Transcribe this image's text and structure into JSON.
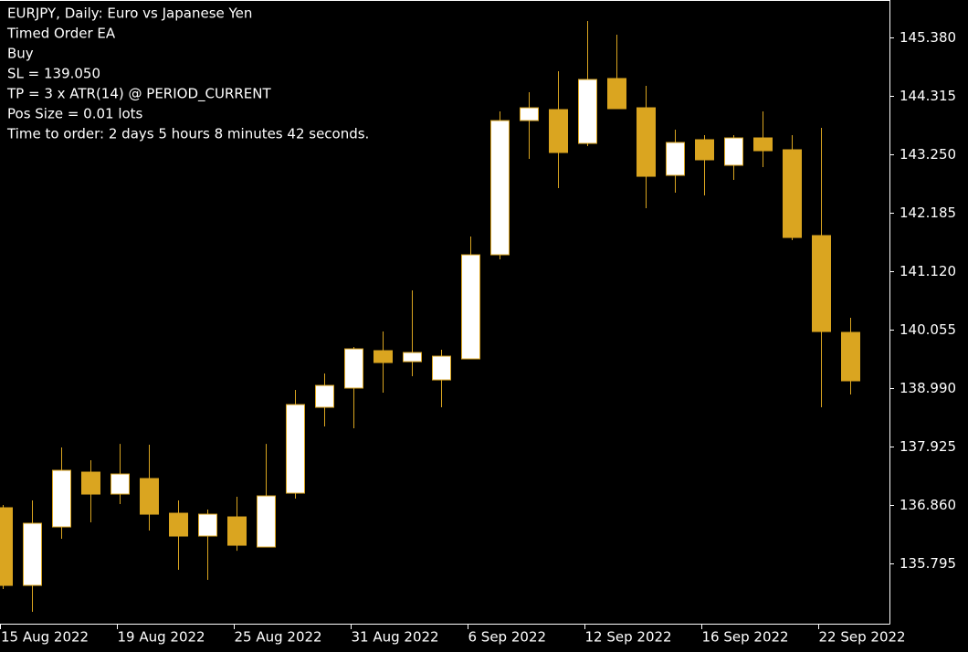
{
  "chart_data": {
    "type": "candlestick",
    "title": "EURJPY, Daily:  Euro vs Japanese Yen",
    "annotations": [
      "Timed Order EA",
      "Buy",
      "SL = 139.050",
      "TP = 3 x ATR(14) @ PERIOD_CURRENT",
      "Pos Size = 0.01 lots",
      "Time to order: 2 days 5 hours 8 minutes 42 seconds."
    ],
    "categories": [
      "15 Aug 2022",
      null,
      null,
      null,
      "19 Aug 2022",
      null,
      null,
      null,
      "25 Aug 2022",
      null,
      null,
      null,
      "31 Aug 2022",
      null,
      null,
      null,
      "6 Sep 2022",
      null,
      null,
      null,
      "12 Sep 2022",
      null,
      null,
      null,
      "16 Sep 2022",
      null,
      null,
      null,
      "22 Sep 2022",
      null
    ],
    "open": [
      136.81,
      135.395,
      136.46,
      137.459,
      137.059,
      137.342,
      136.71,
      136.294,
      136.643,
      136.094,
      137.076,
      138.64,
      138.99,
      139.672,
      139.472,
      139.139,
      139.522,
      141.419,
      143.865,
      144.065,
      143.449,
      144.631,
      144.098,
      142.867,
      143.516,
      143.05,
      143.549,
      143.333,
      141.769,
      140.005
    ],
    "high": [
      136.86,
      136.943,
      137.908,
      137.675,
      137.974,
      137.958,
      136.943,
      136.776,
      137.009,
      137.974,
      138.956,
      139.256,
      139.738,
      140.021,
      140.77,
      139.688,
      141.752,
      144.032,
      144.381,
      144.764,
      145.679,
      145.43,
      144.498,
      143.699,
      143.599,
      143.599,
      144.032,
      143.599,
      143.732,
      140.271
    ],
    "low": [
      135.329,
      134.913,
      136.244,
      136.543,
      136.876,
      136.394,
      135.678,
      135.495,
      136.027,
      136.094,
      136.976,
      138.291,
      138.257,
      138.906,
      139.206,
      138.64,
      139.522,
      141.336,
      143.166,
      142.634,
      143.399,
      144.082,
      142.268,
      142.551,
      142.501,
      142.784,
      143.017,
      141.685,
      138.64,
      138.873
    ],
    "close": [
      135.395,
      136.527,
      137.492,
      137.059,
      137.425,
      136.693,
      136.294,
      136.693,
      136.127,
      137.026,
      138.69,
      139.039,
      139.705,
      139.456,
      139.639,
      139.572,
      141.419,
      143.865,
      144.098,
      143.283,
      144.614,
      144.082,
      142.85,
      143.466,
      143.15,
      143.549,
      143.316,
      141.735,
      140.021,
      139.123
    ],
    "up_color": "#ffffff",
    "down_color": "#daa520",
    "wick_color": "#daa520",
    "ylim": [
      134.697,
      146.062
    ],
    "yticks": [
      {
        "value": 145.38,
        "label": "145.380"
      },
      {
        "value": 144.315,
        "label": "144.315"
      },
      {
        "value": 143.25,
        "label": "143.250"
      },
      {
        "value": 142.185,
        "label": "142.185"
      },
      {
        "value": 141.12,
        "label": "141.120"
      },
      {
        "value": 140.055,
        "label": "140.055"
      },
      {
        "value": 138.99,
        "label": "138.990"
      },
      {
        "value": 137.925,
        "label": "137.925"
      },
      {
        "value": 136.86,
        "label": "136.860"
      },
      {
        "value": 135.795,
        "label": "135.795"
      }
    ],
    "grid": false
  }
}
